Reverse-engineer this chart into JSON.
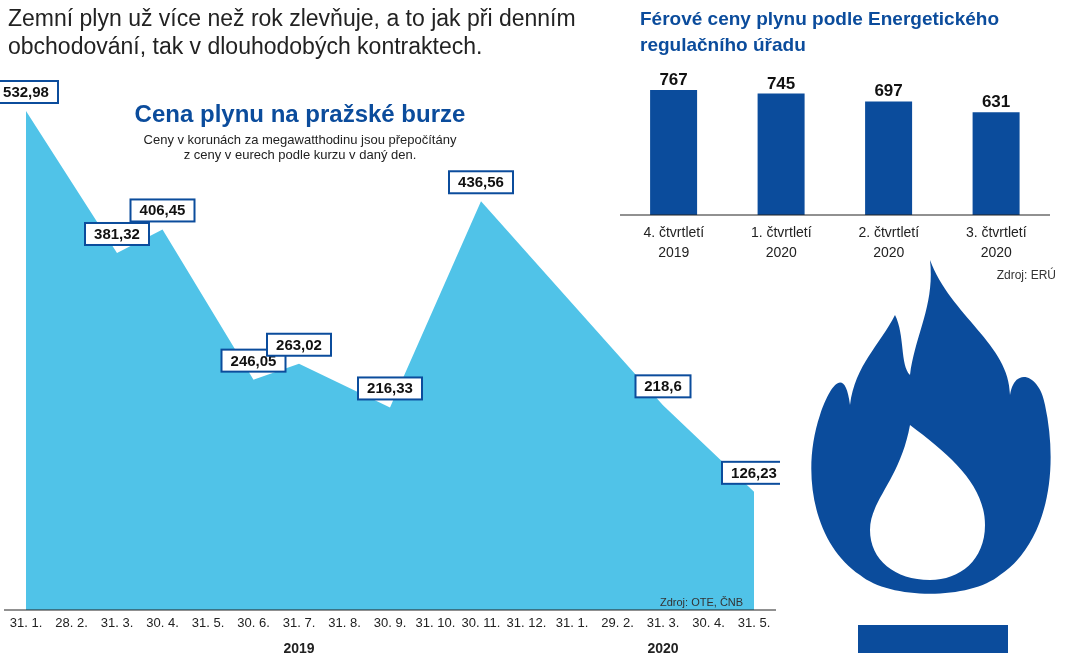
{
  "chart_data": [
    {
      "type": "area",
      "title": "Cena plynu na pražské burze",
      "subtitle": "Ceny v korunách za megawatthodinu jsou přepočítány\nz ceny v eurech podle kurzu v daný den.",
      "categories": [
        "31. 1.",
        "28. 2.",
        "31. 3.",
        "30. 4.",
        "31. 5.",
        "30. 6.",
        "31. 7.",
        "31. 8.",
        "30. 9.",
        "31. 10.",
        "30. 11.",
        "31. 12.",
        "31. 1.",
        "29. 2.",
        "31. 3.",
        "30. 4.",
        "31. 5."
      ],
      "values": [
        532.98,
        null,
        381.32,
        406.45,
        null,
        246.05,
        263.02,
        null,
        216.33,
        null,
        436.56,
        null,
        null,
        null,
        218.6,
        null,
        126.23
      ],
      "value_labels": [
        "532,98",
        null,
        "381,32",
        "406,45",
        null,
        "246,05",
        "263,02",
        null,
        "216,33",
        null,
        "436,56",
        null,
        null,
        null,
        "218,6",
        null,
        "126,23"
      ],
      "color": "#3dbde6",
      "annotations": [
        "Zemní plyn už více než rok zlevňuje, a to jak při denním obchodování, tak v dlouhodobých kontraktech.",
        "Zdroj: OTE, ČNB",
        "2019",
        "2020"
      ]
    },
    {
      "type": "bar",
      "title": "Férové ceny plynu podle Energetického regulačního úřadu",
      "categories": [
        "4. čtvrtletí 2019",
        "1. čtvrtletí 2020",
        "2. čtvrtletí 2020",
        "3. čtvrtletí 2020"
      ],
      "values": [
        767,
        745,
        697,
        631
      ],
      "color": "#0b4c9c",
      "data_labels": true,
      "annotations": [
        "Zdroj: ERÚ"
      ]
    }
  ]
}
